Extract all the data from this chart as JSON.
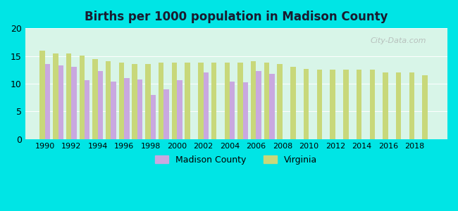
{
  "title": "Births per 1000 population in Madison County",
  "background_color": "#00e5e5",
  "plot_bg_top": "#e8f5f0",
  "plot_bg_bottom": "#e0ffe8",
  "madison_color": "#c9a8e0",
  "virginia_color": "#c8d87a",
  "ylim": [
    0,
    20
  ],
  "yticks": [
    0,
    5,
    10,
    15,
    20
  ],
  "years": [
    1990,
    1991,
    1992,
    1993,
    1994,
    1995,
    1996,
    1997,
    1998,
    1999,
    2000,
    2001,
    2002,
    2003,
    2004,
    2005,
    2006,
    2007,
    2008,
    2009,
    2010,
    2011,
    2012,
    2013,
    2014,
    2015,
    2016,
    2017,
    2018,
    2019
  ],
  "madison_values": [
    13.5,
    13.3,
    13.0,
    10.7,
    12.3,
    10.4,
    11.0,
    10.8,
    8.0,
    9.0,
    10.6,
    null,
    12.0,
    null,
    10.4,
    10.3,
    12.3,
    11.8,
    null,
    null,
    null,
    null,
    null,
    null,
    null,
    null,
    null,
    null,
    null,
    null
  ],
  "virginia_values": [
    16.0,
    15.4,
    15.4,
    15.1,
    14.5,
    14.0,
    13.8,
    13.5,
    13.5,
    13.8,
    13.8,
    13.8,
    13.8,
    13.8,
    13.8,
    13.8,
    14.0,
    13.8,
    13.5,
    13.0,
    12.7,
    12.5,
    12.5,
    12.5,
    12.5,
    12.5,
    12.0,
    12.0,
    12.0,
    11.5
  ],
  "legend_labels": [
    "Madison County",
    "Virginia"
  ],
  "watermark": "City-Data.com"
}
